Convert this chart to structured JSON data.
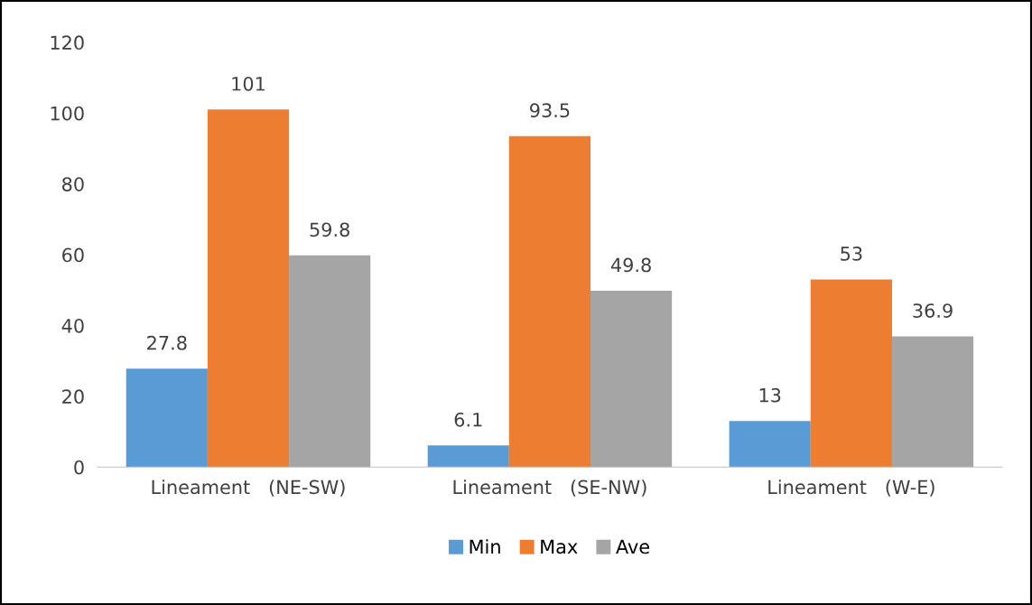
{
  "chart_data": {
    "type": "bar",
    "categories": [
      "Lineament   (NE-SW)",
      "Lineament   (SE-NW)",
      "Lineament   (W-E)"
    ],
    "series": [
      {
        "name": "Min",
        "color": "#5b9bd5",
        "values": [
          27.8,
          6.1,
          13
        ]
      },
      {
        "name": "Max",
        "color": "#ed7d31",
        "values": [
          101,
          93.5,
          53
        ]
      },
      {
        "name": "Ave",
        "color": "#a5a5a5",
        "values": [
          59.8,
          49.8,
          36.9
        ]
      }
    ],
    "ylim": [
      0,
      120
    ],
    "yticks": [
      0,
      20,
      40,
      60,
      80,
      100,
      120
    ],
    "grid": false,
    "legend": "bottom",
    "data_labels": true
  }
}
